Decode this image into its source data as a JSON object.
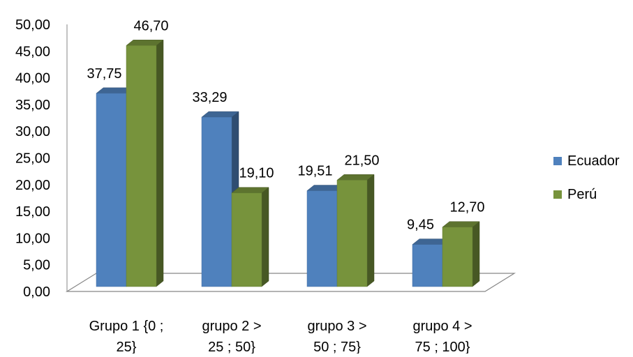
{
  "chart_data": {
    "type": "bar",
    "categories": [
      [
        "Grupo 1 {0 ;",
        "25}"
      ],
      [
        "grupo 2  >",
        "25 ; 50}"
      ],
      [
        "grupo 3  >",
        "50 ; 75}"
      ],
      [
        "grupo 4  >",
        "75 ; 100}"
      ]
    ],
    "series": [
      {
        "name": "Ecuador",
        "values": [
          37.75,
          33.29,
          19.51,
          9.45
        ],
        "labels": [
          "37,75",
          "33,29",
          "19,51",
          "9,45"
        ],
        "color": "#4F81BD"
      },
      {
        "name": "Perú",
        "values": [
          46.7,
          19.1,
          21.5,
          12.7
        ],
        "labels": [
          "46,70",
          "19,10",
          "21,50",
          "12,70"
        ],
        "color": "#77933C"
      }
    ],
    "yticks": [
      "0,00",
      "5,00",
      "10,00",
      "15,00",
      "20,00",
      "25,00",
      "30,00",
      "35,00",
      "40,00",
      "45,00",
      "50,00"
    ],
    "ylim": [
      0,
      50
    ],
    "legend_position": "right",
    "grid": false,
    "bar_style": "3d"
  }
}
